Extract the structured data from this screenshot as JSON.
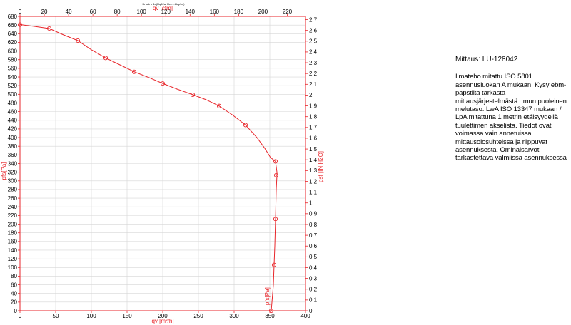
{
  "header_note": "Druck p 1a(Rq62a: Re=1.2kg/m³)",
  "side_panel": {
    "title": "Mittaus: LU-128042",
    "text": "Ilmateho mitattu ISO 5801 asennusluokan A mukaan. Kysy ebm-papstilta tarkasta mittausjärjestelmästä. Imun puoleinen melutaso: LwA ISO 13347 mukaan / LpA mitattuna 1 metrin etäisyydellä tuulettimen akselista. Tiedot ovat voimassa vain annetuissa mittausolosuhteissa ja riippuvat asennuksesta. Ominaisarvot tarkastettava valmiissa asennuksessa"
  },
  "colors": {
    "axis": "#e8262b",
    "curve": "#e8262b",
    "grid": "#d6d6d6",
    "text": "#000000"
  },
  "chart_data": {
    "type": "line",
    "grid": true,
    "xlabel_bottom": "qv [m³/h]",
    "xlabel_top": "qv [cfm]",
    "ylabel_left": "pfs[Pa]",
    "ylabel_right": "psf [IN H2O]",
    "xlim": [
      0,
      400
    ],
    "ylim": [
      0,
      680
    ],
    "x_ticks": [
      "0",
      "50",
      "100",
      "150",
      "200",
      "250",
      "300",
      "350",
      "400"
    ],
    "x_top_lim": [
      0,
      235
    ],
    "x_top_ticks": [
      "0",
      "20",
      "40",
      "60",
      "80",
      "100",
      "120",
      "140",
      "160",
      "180",
      "200",
      "220"
    ],
    "y_ticks": [
      "0",
      "20",
      "40",
      "60",
      "80",
      "100",
      "120",
      "140",
      "160",
      "180",
      "200",
      "220",
      "240",
      "260",
      "280",
      "300",
      "320",
      "340",
      "360",
      "380",
      "400",
      "420",
      "440",
      "460",
      "480",
      "500",
      "520",
      "540",
      "560",
      "580",
      "600",
      "620",
      "640",
      "660",
      "680"
    ],
    "y_right_lim": [
      0,
      2.73
    ],
    "y_right_ticks": [
      "0",
      "0,1",
      "0,2",
      "0,3",
      "0,4",
      "0,5",
      "0,6",
      "0,7",
      "0,8",
      "0,9",
      "1",
      "1,1",
      "1,2",
      "1,3",
      "1,4",
      "1,5",
      "1,6",
      "1,7",
      "1,8",
      "1,9",
      "2",
      "2,1",
      "2,2",
      "2,3",
      "2,4",
      "2,5",
      "2,6",
      "2,7"
    ],
    "series": [
      {
        "name": "pfs[Pa]",
        "curve": [
          [
            0,
            661
          ],
          [
            20,
            657
          ],
          [
            41,
            652
          ],
          [
            60,
            638
          ],
          [
            81,
            624
          ],
          [
            100,
            603
          ],
          [
            120,
            584
          ],
          [
            140,
            568
          ],
          [
            160,
            552
          ],
          [
            180,
            539
          ],
          [
            200,
            525
          ],
          [
            220,
            512
          ],
          [
            242,
            499
          ],
          [
            260,
            488
          ],
          [
            279,
            473
          ],
          [
            298,
            452
          ],
          [
            316,
            429
          ],
          [
            332,
            400
          ],
          [
            343,
            375
          ],
          [
            351,
            354
          ],
          [
            358,
            345
          ],
          [
            360,
            320
          ],
          [
            360,
            313
          ],
          [
            359,
            280
          ],
          [
            358,
            212
          ],
          [
            357,
            150
          ],
          [
            356,
            106
          ],
          [
            355,
            60
          ],
          [
            353,
            20
          ],
          [
            352,
            0
          ]
        ],
        "markers": [
          [
            0,
            661
          ],
          [
            41,
            652
          ],
          [
            81,
            624
          ],
          [
            120,
            584
          ],
          [
            160,
            552
          ],
          [
            200,
            525
          ],
          [
            242,
            499
          ],
          [
            279,
            473
          ],
          [
            316,
            429
          ],
          [
            358,
            345
          ],
          [
            359,
            313
          ],
          [
            358,
            212
          ],
          [
            356,
            106
          ],
          [
            352,
            0
          ]
        ]
      }
    ]
  }
}
